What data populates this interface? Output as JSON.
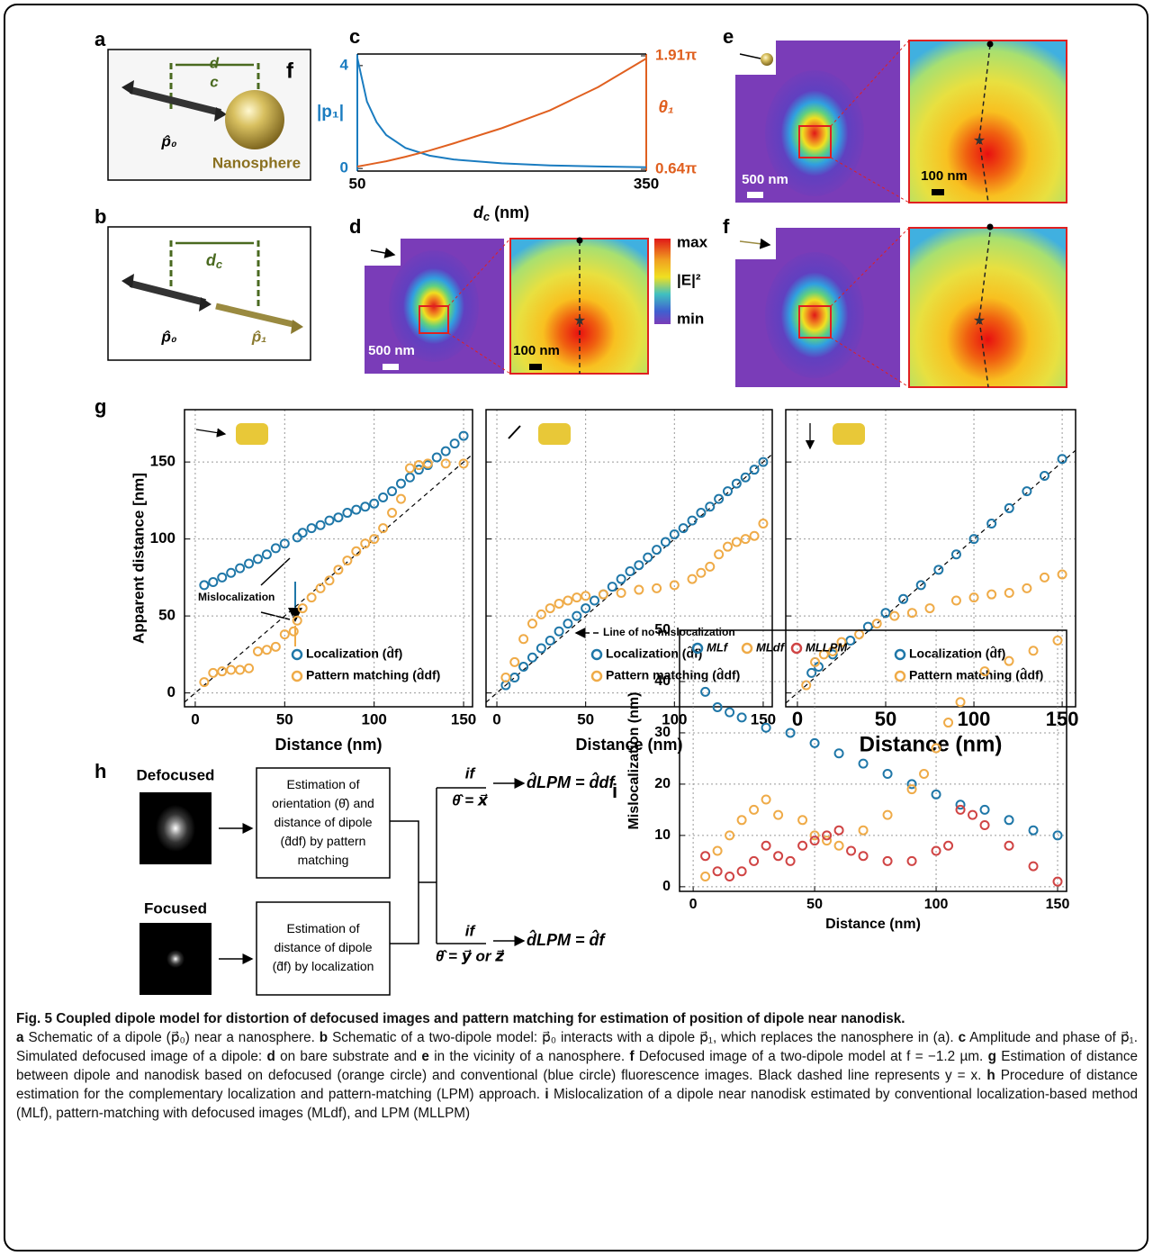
{
  "panel_labels": [
    "a",
    "b",
    "c",
    "d",
    "e",
    "f",
    "g",
    "h",
    "i"
  ],
  "schematic_a": {
    "d": "d",
    "c": "c",
    "f": "f",
    "p0": "p̂₀",
    "sphere": "Nanosphere"
  },
  "schematic_b": {
    "d": "d",
    "c": "c",
    "p0": "p̂₀",
    "p1": "p̂₁"
  },
  "maps": {
    "scale_big": "500 nm",
    "scale_small": "100 nm",
    "colorbar": {
      "max": "max",
      "label": "|E|²",
      "min": "min"
    }
  },
  "procedure": {
    "defocused": "Defocused",
    "focused": "Focused",
    "box1": [
      "Estimation of",
      "orientation (θ̂) and",
      "distance of dipole",
      "(d̂df) by pattern",
      "matching"
    ],
    "box2": [
      "Estimation of",
      "distance of dipole",
      "(d̂f) by localization"
    ],
    "if": "if",
    "cond1": "θ̂ = x⃗",
    "cond2": "θ̂ = y⃗ or z⃗",
    "res1": "d̂LPM = d̂df",
    "res2": "d̂LPM = d̂f"
  },
  "chart_data": [
    {
      "type": "line",
      "xlabel": [
        "d",
        "c",
        " (nm)"
      ],
      "ylabel": "|p₁|",
      "y2label": "θ₁",
      "x": [
        50,
        60,
        70,
        80,
        100,
        125,
        150,
        200,
        250,
        300,
        350
      ],
      "xlim": [
        50,
        350
      ],
      "xticks": [
        50,
        350
      ],
      "ylim": [
        -0.1,
        4.45
      ],
      "yticks": [
        0,
        4
      ],
      "y2lim": [
        0.62,
        1.93
      ],
      "y2ticks": [
        {
          "value": 0.64,
          "label": "0.64π"
        },
        {
          "value": 1.91,
          "label": "1.91π"
        }
      ],
      "series": [
        {
          "color": "#1a7cc0",
          "values": [
            4.3,
            2.6,
            1.8,
            1.3,
            0.8,
            0.5,
            0.35,
            0.2,
            0.12,
            0.08,
            0.05
          ]
        },
        {
          "color": "#e06020",
          "axis": "y2",
          "values": [
            0.67,
            0.69,
            0.71,
            0.73,
            0.78,
            0.85,
            0.93,
            1.1,
            1.3,
            1.56,
            1.88
          ]
        }
      ]
    },
    {
      "type": "scatter",
      "xlabel": "Distance (nm)",
      "ylabel": "Apparent distance [nm]",
      "annotation": "Mislocalization",
      "xlim": [
        -6,
        155
      ],
      "xticks": [
        0,
        50,
        100,
        150
      ],
      "ylim": [
        -9,
        184
      ],
      "yticks": [
        0,
        50,
        100,
        150
      ],
      "ytick_labels": true,
      "grid": true,
      "legend": "lower right",
      "series": [
        {
          "name": "Localization (d̂f)",
          "color": "#1f77a8",
          "x": [
            5,
            10,
            15,
            20,
            25,
            30,
            35,
            40,
            45,
            50,
            57,
            60,
            65,
            70,
            75,
            80,
            85,
            90,
            95,
            100,
            105,
            110,
            115,
            120,
            125,
            130,
            135,
            140,
            145,
            150
          ],
          "values": [
            70,
            72,
            75,
            78,
            81,
            84,
            87,
            90,
            94,
            97,
            101,
            104,
            107,
            109,
            112,
            114,
            117,
            119,
            121,
            123,
            127,
            131,
            136,
            140,
            145,
            148,
            153,
            157,
            162,
            167
          ]
        },
        {
          "name": "Pattern matching (d̂df)",
          "color": "#efab48",
          "x": [
            5,
            10,
            15,
            20,
            25,
            30,
            35,
            40,
            45,
            50,
            55,
            57,
            60,
            65,
            70,
            75,
            80,
            85,
            90,
            95,
            100,
            105,
            110,
            115,
            120,
            125,
            130,
            140,
            150
          ],
          "values": [
            7,
            13,
            14,
            15,
            15,
            16,
            27,
            28,
            30,
            38,
            40,
            47,
            55,
            62,
            68,
            73,
            80,
            86,
            92,
            97,
            100,
            107,
            117,
            126,
            146,
            148,
            149,
            149,
            149
          ]
        }
      ]
    },
    {
      "type": "scatter",
      "xlabel": "Distance (nm)",
      "annotation": "Line of no mislocalization",
      "xlim": [
        -6.1,
        155.1
      ],
      "xticks": [
        0,
        50,
        100,
        150
      ],
      "ylim": [
        -9,
        184
      ],
      "yticks": [
        0,
        50,
        100,
        150
      ],
      "ytick_labels": false,
      "grid": true,
      "legend": "lower right",
      "series": [
        {
          "name": "Localization (d̂f)",
          "color": "#1f77a8",
          "x": [
            5,
            10,
            15,
            20,
            25,
            30,
            35,
            40,
            45,
            50,
            55,
            60,
            65,
            70,
            75,
            80,
            85,
            90,
            95,
            100,
            105,
            110,
            115,
            120,
            125,
            130,
            135,
            140,
            145,
            150
          ],
          "values": [
            5,
            10,
            17,
            23,
            29,
            34,
            40,
            45,
            50,
            55,
            60,
            64,
            69,
            74,
            79,
            83,
            88,
            93,
            98,
            103,
            107,
            112,
            117,
            121,
            126,
            131,
            136,
            140,
            145,
            150
          ]
        },
        {
          "name": "Pattern matching (d̂df)",
          "color": "#efab48",
          "x": [
            5,
            10,
            15,
            20,
            25,
            30,
            35,
            40,
            45,
            50,
            60,
            70,
            80,
            90,
            100,
            110,
            115,
            120,
            125,
            130,
            135,
            140,
            145,
            150
          ],
          "values": [
            10,
            20,
            35,
            45,
            51,
            55,
            58,
            60,
            62,
            63,
            64,
            65,
            67,
            68,
            70,
            74,
            78,
            82,
            90,
            95,
            98,
            100,
            102,
            110
          ]
        }
      ]
    },
    {
      "type": "scatter",
      "xlabel": "Distance (nm)",
      "xlim": [
        -6.6,
        157.6
      ],
      "xticks": [
        0,
        50,
        100,
        150
      ],
      "ylim": [
        -9,
        184
      ],
      "yticks": [
        0,
        50,
        100,
        150
      ],
      "ytick_labels": false,
      "grid": true,
      "legend": "lower right",
      "series": [
        {
          "name": "Localization (d̂f)",
          "color": "#1f77a8",
          "x": [
            8,
            12,
            20,
            30,
            40,
            50,
            60,
            70,
            80,
            90,
            100,
            110,
            120,
            130,
            140,
            150
          ],
          "values": [
            13,
            17,
            25,
            34,
            43,
            52,
            61,
            70,
            80,
            90,
            100,
            110,
            120,
            131,
            141,
            152
          ]
        },
        {
          "name": "Pattern matching (d̂df)",
          "color": "#efab48",
          "x": [
            5,
            10,
            15,
            20,
            25,
            35,
            45,
            55,
            65,
            75,
            90,
            100,
            110,
            120,
            130,
            140,
            150
          ],
          "values": [
            5,
            20,
            25,
            27,
            33,
            38,
            45,
            50,
            52,
            55,
            60,
            62,
            64,
            65,
            68,
            75,
            77
          ]
        }
      ]
    },
    {
      "type": "scatter",
      "xlabel": "Distance (nm)",
      "ylabel": "Mislocalization (nm)",
      "xlim": [
        -5.6,
        153.7
      ],
      "xticks": [
        0,
        50,
        100,
        150
      ],
      "ylim": [
        -0.9,
        50
      ],
      "yticks": [
        0,
        10,
        20,
        30,
        40,
        50
      ],
      "ytick_labels": true,
      "grid": true,
      "legend": "upper left",
      "series": [
        {
          "name": "MLf",
          "color": "#1f77a8",
          "x": [
            5,
            10,
            15,
            20,
            30,
            40,
            50,
            60,
            70,
            80,
            90,
            100,
            110,
            120,
            130,
            140,
            150
          ],
          "values": [
            38,
            35,
            34,
            33,
            31,
            30,
            28,
            26,
            24,
            22,
            20,
            18,
            16,
            15,
            13,
            11,
            10
          ]
        },
        {
          "name": "MLdf",
          "color": "#efab48",
          "x": [
            5,
            10,
            15,
            20,
            25,
            30,
            35,
            45,
            50,
            55,
            60,
            70,
            80,
            90,
            95,
            100,
            105,
            110,
            120,
            130,
            140,
            150
          ],
          "values": [
            2,
            7,
            10,
            13,
            15,
            17,
            14,
            13,
            10,
            9,
            8,
            11,
            14,
            19,
            22,
            27,
            32,
            36,
            42,
            44,
            46,
            48
          ]
        },
        {
          "name": "MLLPM",
          "color": "#d04444",
          "x": [
            5,
            10,
            15,
            20,
            25,
            30,
            35,
            40,
            45,
            50,
            55,
            60,
            65,
            70,
            80,
            90,
            100,
            105,
            110,
            115,
            120,
            130,
            140,
            150
          ],
          "values": [
            6,
            3,
            2,
            3,
            5,
            8,
            6,
            5,
            8,
            9,
            10,
            11,
            7,
            6,
            5,
            5,
            7,
            8,
            15,
            14,
            12,
            8,
            4,
            1
          ]
        }
      ]
    }
  ],
  "caption": {
    "title": "Fig. 5 Coupled dipole model for distortion of defocused images and pattern matching for estimation of position of dipole near nanodisk.",
    "body": [
      "a",
      " Schematic of a dipole (p⃗₀) near a nanosphere. ",
      "b",
      " Schematic of a two-dipole model: p⃗₀ interacts with a dipole p⃗₁, which replaces the nanosphere in (",
      "a",
      "). ",
      "c",
      " Amplitude and phase of p⃗₁. Simulated defocused image of a dipole: ",
      "d",
      " on bare substrate and ",
      "e",
      " in the vicinity of a nanosphere. ",
      "f",
      " Defocused image of a two-dipole model at f = −1.2 µm. ",
      "g",
      " Estimation of distance between dipole and nanodisk based on defocused (orange circle) and conventional (blue circle) fluorescence images. Black dashed line represents y = x. ",
      "h",
      " Procedure of distance estimation for the complementary localization and pattern-matching (LPM) approach. ",
      "i",
      " Mislocalization of a dipole near nanodisk estimated by conventional localization-based method (MLf), pattern-matching with defocused images (MLdf), and LPM (MLLPM)"
    ]
  }
}
